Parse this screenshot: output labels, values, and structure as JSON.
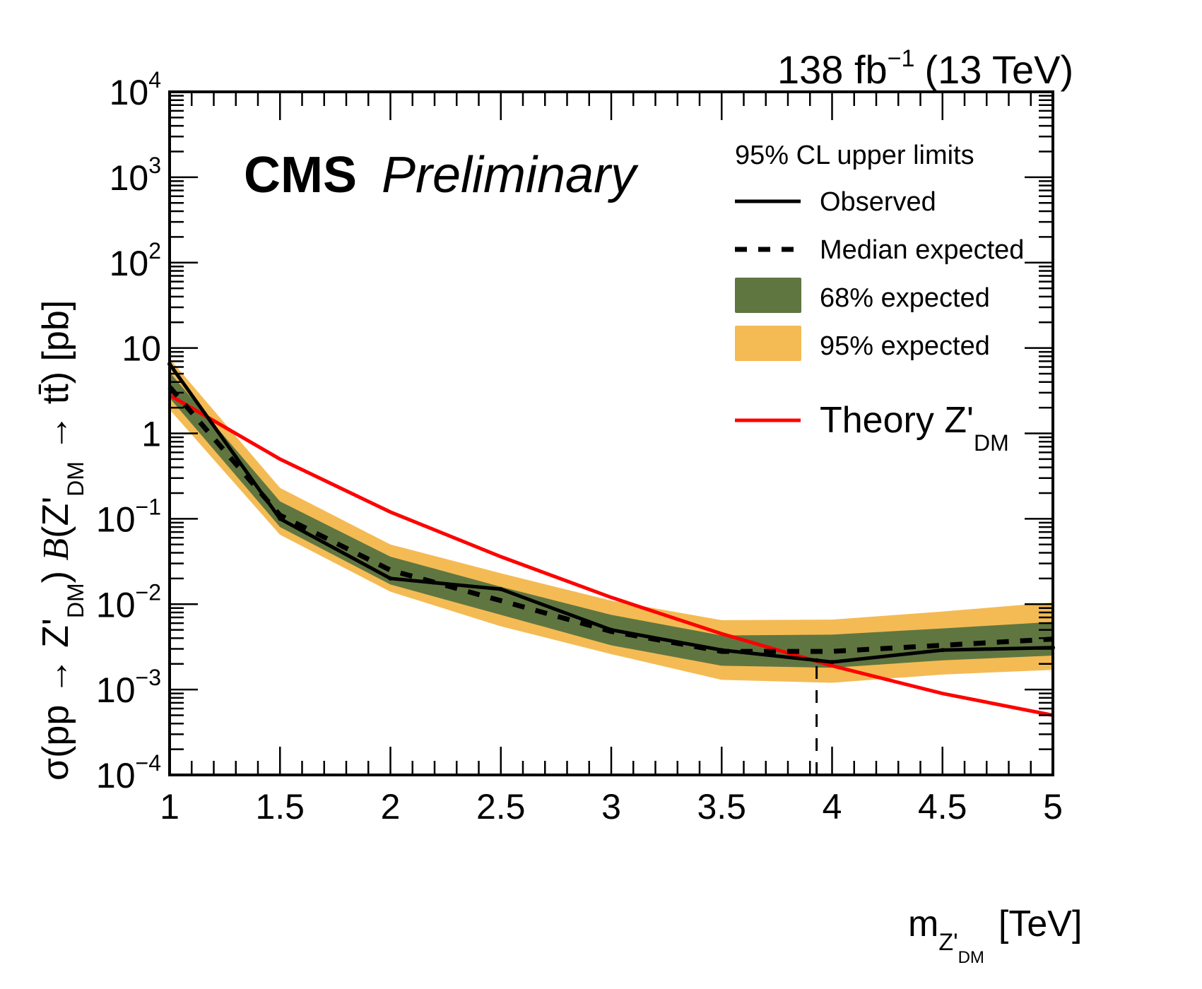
{
  "header": {
    "experiment": "CMS",
    "status": "Preliminary",
    "lumi": "138 fb",
    "lumi_exp": "−1",
    "energy": "(13 TeV)"
  },
  "legend": {
    "title": "95% CL upper limits",
    "observed": "Observed",
    "median": "Median expected",
    "band68": "68% expected",
    "band95": "95% expected",
    "theory": "Theory Z'",
    "theory_sub": "DM"
  },
  "colors": {
    "band68": "#607641",
    "band95": "#F4BB54",
    "observed": "#000000",
    "expected": "#000000",
    "theory": "#FF0000"
  },
  "chart_data": {
    "type": "line",
    "title": "",
    "xlabel": "m_{Z'_{DM}} [TeV]",
    "ylabel": "σ(pp → Z'_{DM}) B(Z'_{DM} → t̄t) [pb]",
    "xlim": [
      1,
      5
    ],
    "ylim": [
      0.0001,
      10000
    ],
    "yscale": "log",
    "grid": false,
    "legend_position": "top-right",
    "x_ticks": [
      "1",
      "1.5",
      "2",
      "2.5",
      "3",
      "3.5",
      "4",
      "4.5",
      "5"
    ],
    "y_ticks": [
      {
        "base": "10",
        "exp": "−4",
        "value": 0.0001
      },
      {
        "base": "10",
        "exp": "−3",
        "value": 0.001
      },
      {
        "base": "10",
        "exp": "−2",
        "value": 0.01
      },
      {
        "base": "10",
        "exp": "−1",
        "value": 0.1
      },
      {
        "base": "1",
        "exp": "",
        "value": 1
      },
      {
        "base": "10",
        "exp": "",
        "value": 10
      },
      {
        "base": "10",
        "exp": "2",
        "value": 100
      },
      {
        "base": "10",
        "exp": "3",
        "value": 1000
      },
      {
        "base": "10",
        "exp": "4",
        "value": 10000
      }
    ],
    "x": [
      1.0,
      1.5,
      2.0,
      2.5,
      3.0,
      3.5,
      4.0,
      4.5,
      5.0
    ],
    "series": [
      {
        "name": "Observed",
        "style": "solid",
        "x": [
          1.0,
          1.5,
          2.0,
          2.5,
          3.0,
          3.5,
          3.93,
          4.0,
          4.5,
          5.0
        ],
        "values": [
          6.5,
          0.1,
          0.02,
          0.015,
          0.005,
          0.0029,
          0.0022,
          0.0021,
          0.0029,
          0.0031
        ]
      },
      {
        "name": "Median expected",
        "style": "dashed",
        "values": [
          3.5,
          0.11,
          0.025,
          0.011,
          0.0048,
          0.0028,
          0.0028,
          0.0033,
          0.0039
        ]
      },
      {
        "name": "68% expected",
        "type": "band",
        "low": [
          2.6,
          0.08,
          0.017,
          0.0075,
          0.0033,
          0.0019,
          0.0018,
          0.0022,
          0.0025
        ],
        "high": [
          5.2,
          0.16,
          0.036,
          0.016,
          0.0075,
          0.0043,
          0.0044,
          0.0052,
          0.0062
        ]
      },
      {
        "name": "95% expected",
        "type": "band",
        "low": [
          1.9,
          0.065,
          0.014,
          0.0055,
          0.0026,
          0.0013,
          0.0012,
          0.0015,
          0.0017
        ],
        "high": [
          7.5,
          0.23,
          0.05,
          0.023,
          0.011,
          0.0065,
          0.0066,
          0.0082,
          0.0105
        ]
      },
      {
        "name": "Theory Z'_DM",
        "style": "solid",
        "values": [
          2.8,
          0.5,
          0.12,
          0.036,
          0.012,
          0.0045,
          0.0019,
          0.0009,
          0.0005
        ]
      }
    ],
    "annotations": [
      {
        "type": "vertical-dashed-line",
        "x": 3.93,
        "from": 0.0001,
        "to": 0.0022,
        "meaning": "observed mass exclusion limit"
      }
    ]
  }
}
